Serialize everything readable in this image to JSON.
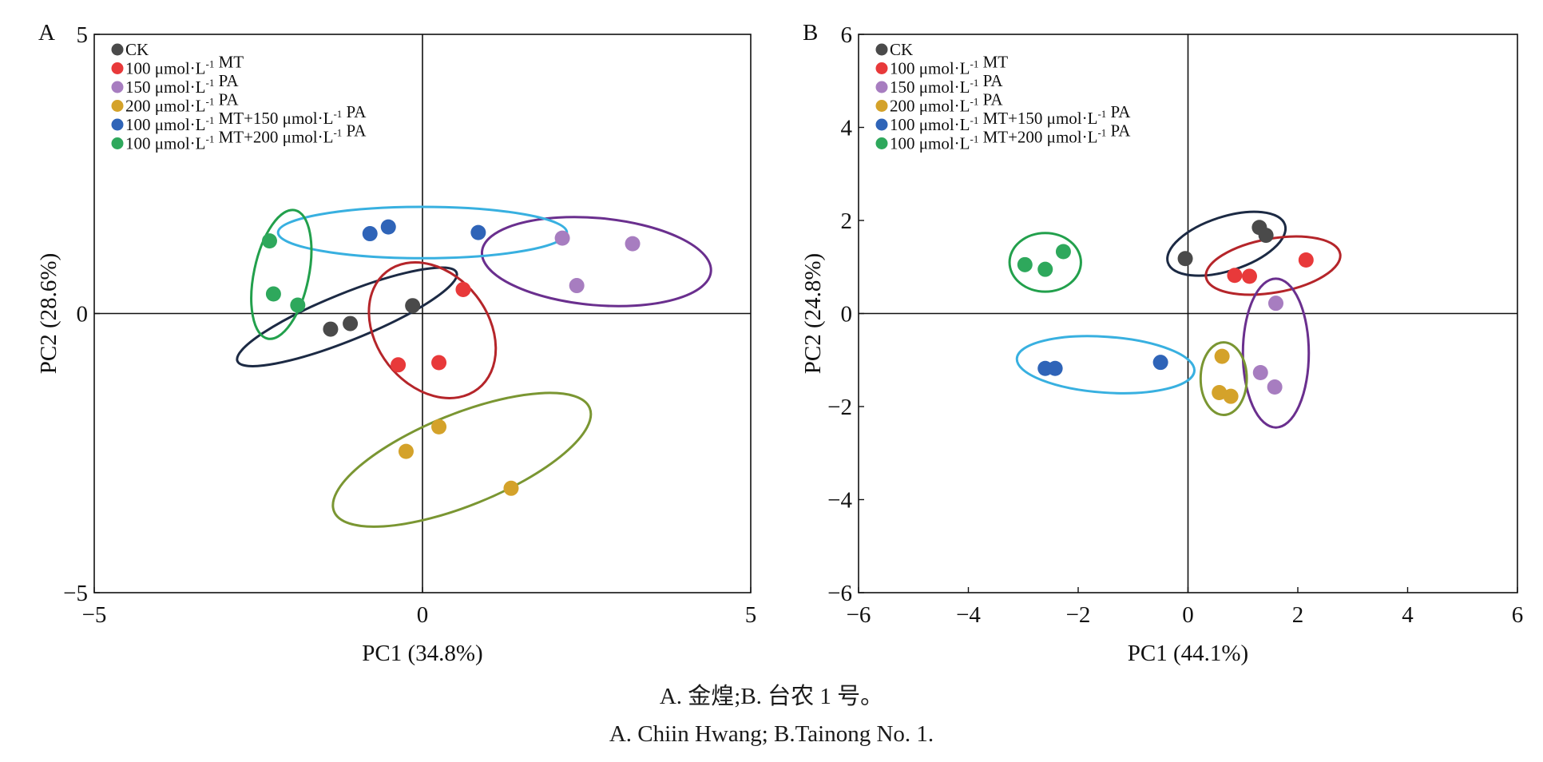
{
  "caption": {
    "zh": "A. 金煌;B. 台农 1 号。",
    "en": "A. Chiin Hwang; B.Tainong No. 1."
  },
  "legend": [
    {
      "label_prefix": "CK",
      "color": "#4a4a4a"
    },
    {
      "label_prefix": "100 μmol·L",
      "sup": "-1",
      "label_suffix": " MT",
      "color": "#e8393a"
    },
    {
      "label_prefix": "150 μmol·L",
      "sup": "-1",
      "label_suffix": " PA",
      "color": "#a77dc0"
    },
    {
      "label_prefix": "200 μmol·L",
      "sup": "-1",
      "label_suffix": " PA",
      "color": "#d4a22a"
    },
    {
      "label_prefix": "100 μmol·L",
      "sup": "-1",
      "label_suffix": " MT+150 μmol·L",
      "sup2": "-1",
      "label_suffix2": " PA",
      "color": "#2f64b8"
    },
    {
      "label_prefix": "100 μmol·L",
      "sup": "-1",
      "label_suffix": " MT+200 μmol·L",
      "sup2": "-1",
      "label_suffix2": " PA",
      "color": "#2ea85c"
    }
  ],
  "chart_data": [
    {
      "type": "scatter",
      "panel_label": "A",
      "xlabel": "PC1 (34.8%)",
      "ylabel": "PC2 (28.6%)",
      "xlim": [
        -5,
        5
      ],
      "ylim": [
        -5,
        5
      ],
      "xticks": [
        -5,
        0,
        5
      ],
      "yticks": [
        -5,
        0,
        5
      ],
      "xtick_labels": [
        "−5",
        "0",
        "5"
      ],
      "ytick_labels": [
        "−5",
        "0",
        "5"
      ],
      "grid": false,
      "legend_position": "top-left",
      "series": [
        {
          "name": "CK",
          "color": "#4a4a4a",
          "ellipse_color": "#1c2a44",
          "points": [
            [
              -1.4,
              -0.28
            ],
            [
              -1.1,
              -0.18
            ],
            [
              -0.15,
              0.14
            ]
          ],
          "ellipse": {
            "cx": -1.15,
            "cy": -0.06,
            "rx": 1.8,
            "ry": 0.42,
            "angle": 22
          }
        },
        {
          "name": "100 μmol·L-1 MT",
          "color": "#e8393a",
          "ellipse_color": "#b5252a",
          "points": [
            [
              0.62,
              0.43
            ],
            [
              0.25,
              -0.88
            ],
            [
              -0.37,
              -0.92
            ]
          ],
          "ellipse": {
            "cx": 0.15,
            "cy": -0.3,
            "rx": 0.85,
            "ry": 1.33,
            "angle": 38
          }
        },
        {
          "name": "150 μmol·L-1 PA",
          "color": "#a77dc0",
          "ellipse_color": "#6a2f8e",
          "points": [
            [
              2.13,
              1.35
            ],
            [
              3.2,
              1.25
            ],
            [
              2.35,
              0.5
            ]
          ],
          "ellipse": {
            "cx": 2.65,
            "cy": 0.93,
            "rx": 1.75,
            "ry": 0.78,
            "angle": -5
          }
        },
        {
          "name": "200 μmol·L-1 PA",
          "color": "#d4a22a",
          "ellipse_color": "#7a9632",
          "points": [
            [
              0.25,
              -2.03
            ],
            [
              -0.25,
              -2.47
            ],
            [
              1.35,
              -3.13
            ]
          ],
          "ellipse": {
            "cx": 0.6,
            "cy": -2.62,
            "rx": 2.1,
            "ry": 0.82,
            "angle": 22
          }
        },
        {
          "name": "100 μmol·L-1 MT+150 μmol·L-1 PA",
          "color": "#2f64b8",
          "ellipse_color": "#38b0e0",
          "points": [
            [
              -0.8,
              1.43
            ],
            [
              -0.52,
              1.55
            ],
            [
              0.85,
              1.45
            ]
          ],
          "ellipse": {
            "cx": 0.0,
            "cy": 1.45,
            "rx": 2.2,
            "ry": 0.46,
            "angle": 0
          }
        },
        {
          "name": "100 μmol·L-1 MT+200 μmol·L-1 PA",
          "color": "#2ea85c",
          "ellipse_color": "#22a04c",
          "points": [
            [
              -2.33,
              1.3
            ],
            [
              -2.27,
              0.35
            ],
            [
              -1.9,
              0.15
            ]
          ],
          "ellipse": {
            "cx": -2.15,
            "cy": 0.7,
            "rx": 1.0,
            "ry": 0.49,
            "angle": 78
          }
        }
      ]
    },
    {
      "type": "scatter",
      "panel_label": "B",
      "xlabel": "PC1 (44.1%)",
      "ylabel": "PC2 (24.8%)",
      "xlim": [
        -6,
        6
      ],
      "ylim": [
        -6,
        6
      ],
      "xticks": [
        -6,
        -4,
        -2,
        0,
        2,
        4,
        6
      ],
      "yticks": [
        -6,
        -4,
        -2,
        0,
        2,
        4,
        6
      ],
      "xtick_labels": [
        "−6",
        "−4",
        "−2",
        "0",
        "2",
        "4",
        "6"
      ],
      "ytick_labels": [
        "−6",
        "−4",
        "−2",
        "0",
        "2",
        "4",
        "6"
      ],
      "grid": false,
      "legend_position": "top-left",
      "series": [
        {
          "name": "CK",
          "color": "#4a4a4a",
          "ellipse_color": "#1c2a44",
          "points": [
            [
              -0.05,
              1.18
            ],
            [
              1.3,
              1.85
            ],
            [
              1.42,
              1.68
            ]
          ],
          "ellipse": {
            "cx": 0.7,
            "cy": 1.5,
            "rx": 1.12,
            "ry": 0.58,
            "angle": 18
          }
        },
        {
          "name": "100 μmol·L-1 MT",
          "color": "#e8393a",
          "ellipse_color": "#b5252a",
          "points": [
            [
              0.85,
              0.82
            ],
            [
              1.12,
              0.8
            ],
            [
              2.15,
              1.15
            ]
          ],
          "ellipse": {
            "cx": 1.55,
            "cy": 1.03,
            "rx": 1.24,
            "ry": 0.58,
            "angle": 10
          }
        },
        {
          "name": "150 μmol·L-1 PA",
          "color": "#a77dc0",
          "ellipse_color": "#6a2f8e",
          "points": [
            [
              1.6,
              0.22
            ],
            [
              1.32,
              -1.27
            ],
            [
              1.58,
              -1.58
            ]
          ],
          "ellipse": {
            "cx": 1.6,
            "cy": -0.85,
            "rx": 0.6,
            "ry": 1.6,
            "angle": 0
          }
        },
        {
          "name": "200 μmol·L-1 PA",
          "color": "#d4a22a",
          "ellipse_color": "#7a9632",
          "points": [
            [
              0.62,
              -0.92
            ],
            [
              0.57,
              -1.7
            ],
            [
              0.78,
              -1.78
            ]
          ],
          "ellipse": {
            "cx": 0.65,
            "cy": -1.4,
            "rx": 0.42,
            "ry": 0.78,
            "angle": 0
          }
        },
        {
          "name": "100 μmol·L-1 MT+150 μmol·L-1 PA",
          "color": "#2f64b8",
          "ellipse_color": "#38b0e0",
          "points": [
            [
              -2.6,
              -1.18
            ],
            [
              -2.42,
              -1.18
            ],
            [
              -0.5,
              -1.05
            ]
          ],
          "ellipse": {
            "cx": -1.5,
            "cy": -1.1,
            "rx": 1.62,
            "ry": 0.6,
            "angle": -4
          }
        },
        {
          "name": "100 μmol·L-1 MT+200 μmol·L-1 PA",
          "color": "#2ea85c",
          "ellipse_color": "#22a04c",
          "points": [
            [
              -2.97,
              1.05
            ],
            [
              -2.6,
              0.95
            ],
            [
              -2.27,
              1.33
            ]
          ],
          "ellipse": {
            "cx": -2.6,
            "cy": 1.1,
            "rx": 0.65,
            "ry": 0.63,
            "angle": 0
          }
        }
      ]
    }
  ]
}
